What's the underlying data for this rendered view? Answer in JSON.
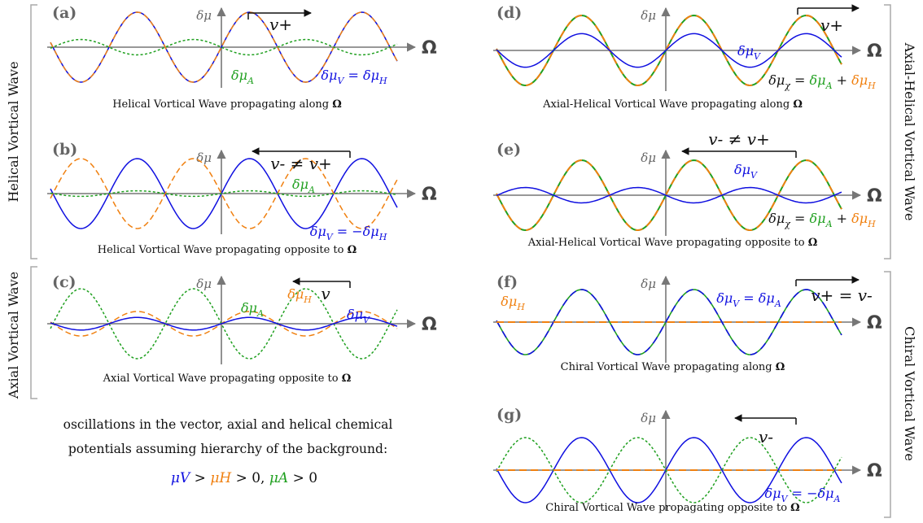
{
  "colors": {
    "V": "#1010e0",
    "A": "#20a020",
    "H": "#f08010",
    "axis": "#777777",
    "bracket": "#aaaaaa"
  },
  "axis_symbol": "Ω",
  "axis_ylabel": "δμ",
  "side_labels": {
    "helical": "Helical Vortical Wave",
    "axial": "Axial Vortical Wave",
    "axial_helical": "Axial-Helical Vortical Wave",
    "chiral": "Chiral Vortical Wave"
  },
  "note": {
    "line1": "oscillations in the vector, axial and helical chemical",
    "line2": "potentials assuming hierarchy of the background:",
    "V": "μV",
    "gt1": " > ",
    "H": "μH",
    "gt0": " > 0,   ",
    "A": "μA",
    "gt0b": " > 0"
  },
  "panels": [
    {
      "id": "a",
      "label": "(a)",
      "caption": "Helical Vortical Wave propagating along ",
      "caption_bold": "Ω",
      "velocity": "v+",
      "direction": "right",
      "labels": [
        {
          "text": "δμA",
          "color": "A"
        },
        {
          "text": "δμV = δμH",
          "color": "V"
        }
      ],
      "series": [
        {
          "name": "V",
          "amp": 1.0,
          "phase": 0,
          "style": "solid"
        },
        {
          "name": "H",
          "amp": 1.0,
          "phase": 0,
          "style": "dash"
        },
        {
          "name": "A",
          "amp": 0.22,
          "phase": 3.1416,
          "style": "dot"
        }
      ]
    },
    {
      "id": "b",
      "label": "(b)",
      "caption": "Helical Vortical Wave propagating opposite to ",
      "caption_bold": "Ω",
      "velocity": "v- ≠ v+",
      "direction": "left",
      "labels": [
        {
          "text": "δμA",
          "color": "A"
        },
        {
          "text": "δμV = −δμH",
          "color": "V"
        }
      ],
      "series": [
        {
          "name": "V",
          "amp": 1.0,
          "phase": 0,
          "style": "solid"
        },
        {
          "name": "H",
          "amp": 1.0,
          "phase": 3.1416,
          "style": "dash"
        },
        {
          "name": "A",
          "amp": 0.08,
          "phase": 0,
          "style": "dot"
        }
      ]
    },
    {
      "id": "c",
      "label": "(c)",
      "caption": "Axial Vortical Wave propagating opposite to ",
      "caption_bold": "Ω",
      "velocity": "v",
      "direction": "left",
      "labels": [
        {
          "text": "δμA",
          "color": "A"
        },
        {
          "text": "δμH",
          "color": "H"
        },
        {
          "text": "δμV",
          "color": "V"
        }
      ],
      "series": [
        {
          "name": "A",
          "amp": 1.0,
          "phase": 3.1416,
          "style": "dot"
        },
        {
          "name": "H",
          "amp": 0.35,
          "phase": 0,
          "style": "dash"
        },
        {
          "name": "V",
          "amp": 0.18,
          "phase": 0,
          "style": "solid"
        }
      ]
    },
    {
      "id": "d",
      "label": "(d)",
      "caption": "Axial-Helical Vortical Wave propagating along ",
      "caption_bold": "Ω",
      "velocity": "v+",
      "direction": "right",
      "labels": [
        {
          "text": "δμV",
          "color": "V"
        },
        {
          "text": "δμχ = δμA + δμH",
          "color": "mix"
        }
      ],
      "series": [
        {
          "name": "A",
          "amp": 1.0,
          "phase": 0,
          "style": "solid"
        },
        {
          "name": "H",
          "amp": 1.0,
          "phase": 0,
          "style": "dashA"
        },
        {
          "name": "V",
          "amp": 0.48,
          "phase": 0,
          "style": "solid"
        }
      ]
    },
    {
      "id": "e",
      "label": "(e)",
      "caption": "Axial-Helical Vortical Wave propagating opposite to ",
      "caption_bold": "Ω",
      "velocity": "v- ≠ v+",
      "direction": "left",
      "labels": [
        {
          "text": "δμV",
          "color": "V"
        },
        {
          "text": "δμχ = δμA + δμH",
          "color": "mix"
        }
      ],
      "series": [
        {
          "name": "A",
          "amp": 1.0,
          "phase": 0,
          "style": "solid"
        },
        {
          "name": "H",
          "amp": 1.0,
          "phase": 0,
          "style": "dashA"
        },
        {
          "name": "V",
          "amp": 0.22,
          "phase": 3.1416,
          "style": "solid"
        }
      ]
    },
    {
      "id": "f",
      "label": "(f)",
      "caption": "Chiral Vortical Wave propagating along ",
      "caption_bold": "Ω",
      "velocity": "v+ = v-",
      "direction": "right",
      "labels": [
        {
          "text": "δμH",
          "color": "H"
        },
        {
          "text": "δμV = δμA",
          "color": "V"
        }
      ],
      "series": [
        {
          "name": "A",
          "amp": 1.0,
          "phase": 0,
          "style": "solid"
        },
        {
          "name": "V",
          "amp": 1.0,
          "phase": 0,
          "style": "dashV"
        },
        {
          "name": "H",
          "amp": 0.0,
          "phase": 0,
          "style": "dash"
        }
      ]
    },
    {
      "id": "g",
      "label": "(g)",
      "caption": "Chiral Vortical Wave propagating opposite to ",
      "caption_bold": "Ω",
      "velocity": "v-",
      "direction": "left",
      "labels": [
        {
          "text": "δμV = −δμA",
          "color": "V"
        }
      ],
      "series": [
        {
          "name": "V",
          "amp": 1.0,
          "phase": 0,
          "style": "solid"
        },
        {
          "name": "A",
          "amp": 1.0,
          "phase": 3.1416,
          "style": "dot"
        },
        {
          "name": "H",
          "amp": 0.0,
          "phase": 0,
          "style": "dash"
        }
      ]
    }
  ]
}
